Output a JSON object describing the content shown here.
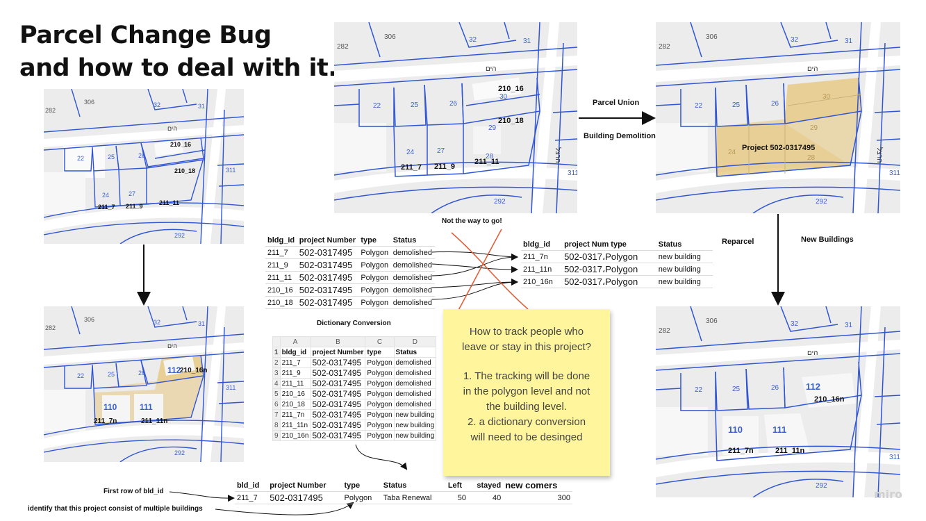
{
  "title": {
    "line1": "Parcel Change Bug",
    "line2": "and how to deal with it."
  },
  "maps": {
    "top_left": {
      "street": "הים",
      "numbers": [
        "282",
        "306",
        "32",
        "31",
        "22",
        "25",
        "26",
        "24",
        "27",
        "311",
        "292"
      ],
      "labels": [
        "210_16",
        "210_18",
        "211_7",
        "211_9",
        "211_11"
      ]
    },
    "top_middle": {
      "street": "הים",
      "street2": "הרצל",
      "numbers": [
        "282",
        "306",
        "32",
        "31",
        "22",
        "25",
        "26",
        "30",
        "29",
        "24",
        "27",
        "28",
        "311",
        "292"
      ],
      "labels": [
        "210_16",
        "210_18",
        "211_7",
        "211_9",
        "211_11"
      ]
    },
    "top_right": {
      "street": "הים",
      "street2": "הרצל",
      "numbers": [
        "282",
        "306",
        "32",
        "31",
        "22",
        "25",
        "26",
        "30",
        "29",
        "24",
        "28",
        "311",
        "292"
      ],
      "project": "Project 502-0317495"
    },
    "bottom_left": {
      "street": "הים",
      "numbers": [
        "282",
        "306",
        "32",
        "31",
        "22",
        "25",
        "26",
        "311",
        "292"
      ],
      "labels": [
        "112",
        "210_16n",
        "110",
        "111",
        "211_7n",
        "211_11n"
      ]
    },
    "bottom_right": {
      "street": "הים",
      "numbers": [
        "282",
        "306",
        "32",
        "31",
        "22",
        "25",
        "26",
        "311",
        "292"
      ],
      "labels": [
        "112",
        "210_16n",
        "110",
        "111",
        "211_7n",
        "211_11n"
      ]
    }
  },
  "arrows": {
    "parcel_union": "Parcel Union",
    "building_demolition": "Building Demolition",
    "reparcel": "Reparcel",
    "new_buildings": "New Buildings",
    "not_the_way": "Not the way to go!",
    "dictionary_conversion": "Dictionary Conversion",
    "first_row": "First row of bld_id",
    "identify": "identify that this project consist of multiple buildings"
  },
  "old_table": {
    "headers": [
      "bldg_id",
      "project Number",
      "type",
      "Status"
    ],
    "rows": [
      [
        "211_7",
        "502-0317495",
        "Polygon",
        "demolished"
      ],
      [
        "211_9",
        "502-0317495",
        "Polygon",
        "demolished"
      ],
      [
        "211_11",
        "502-0317495",
        "Polygon",
        "demolished"
      ],
      [
        "210_16",
        "502-0317495",
        "Polygon",
        "demolished"
      ],
      [
        "210_18",
        "502-0317495",
        "Polygon",
        "demolished"
      ]
    ]
  },
  "new_table": {
    "headers": [
      "bldg_id",
      "project Num type",
      "Status"
    ],
    "rows": [
      [
        "211_7n",
        "502-0317،Polygon",
        "new building"
      ],
      [
        "211_11n",
        "502-0317،Polygon",
        "new building"
      ],
      [
        "210_16n",
        "502-0317،Polygon",
        "new building"
      ]
    ]
  },
  "dictionary_table": {
    "col_letters": [
      "A",
      "B",
      "C",
      "D"
    ],
    "headers": [
      "bldg_id",
      "project Number",
      "type",
      "Status"
    ],
    "rows": [
      [
        "211_7",
        "502-0317495",
        "Polygon",
        "demolished"
      ],
      [
        "211_9",
        "502-0317495",
        "Polygon",
        "demolished"
      ],
      [
        "211_11",
        "502-0317495",
        "Polygon",
        "demolished"
      ],
      [
        "210_16",
        "502-0317495",
        "Polygon",
        "demolished"
      ],
      [
        "210_18",
        "502-0317495",
        "Polygon",
        "demolished"
      ],
      [
        "211_7n",
        "502-0317495",
        "Polygon",
        "new building"
      ],
      [
        "211_11n",
        "502-0317495",
        "Polygon",
        "new building"
      ],
      [
        "210_16n",
        "502-0317495",
        "Polygon",
        "new building"
      ]
    ]
  },
  "result_table": {
    "headers": [
      "bld_id",
      "project Number",
      "type",
      "Status",
      "Left",
      "stayed",
      "new comers"
    ],
    "row": [
      "211_7",
      "502-0317495",
      "Polygon",
      "Taba Renewal",
      "50",
      "40",
      "300"
    ]
  },
  "sticky": {
    "q1": "How to track people who",
    "q2": "leave or stay in this project?",
    "a1": "1. The tracking will be done",
    "a2": "in the polygon level and not",
    "a3": "the building level.",
    "a4": "2. a dictionary conversion",
    "a5": "will need to be desinged"
  },
  "watermark": "miro",
  "colors": {
    "parcel_blue": "#2f55d4",
    "highlight": "#e8c983",
    "sticky": "#fff59d",
    "red_cross": "#e0603a"
  }
}
